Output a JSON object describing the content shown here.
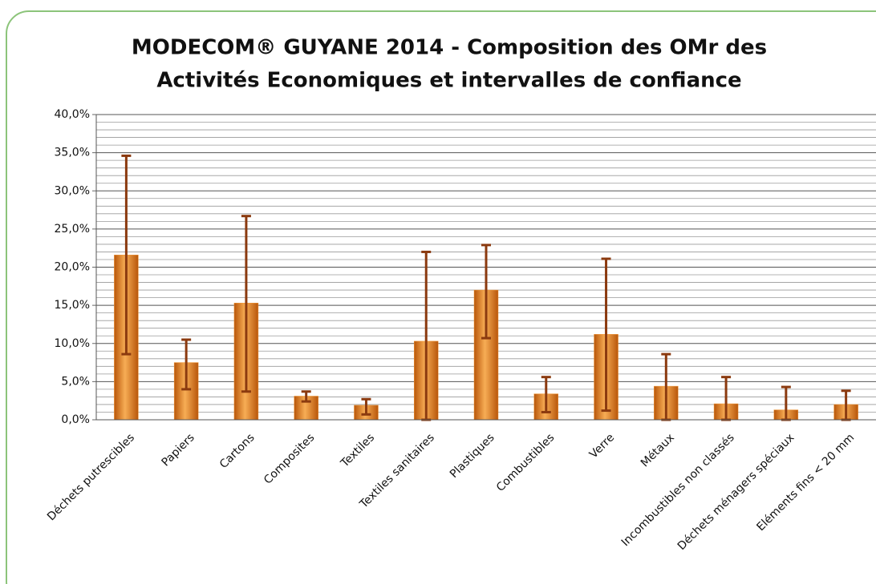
{
  "chart_data": {
    "type": "bar",
    "title": [
      "MODECOM® GUYANE 2014 - Composition des OMr des",
      "Activités Economiques et intervalles de confiance"
    ],
    "categories": [
      "Déchets putrescibles",
      "Papiers",
      "Cartons",
      "Composites",
      "Textiles",
      "Textiles sanitaires",
      "Plastiques",
      "Combustibles",
      "Verre",
      "Métaux",
      "Incombustibles non classés",
      "Déchets ménagers spéciaux",
      "Eléments fins < 20 mm"
    ],
    "values": [
      21.6,
      7.5,
      15.3,
      3.1,
      1.9,
      10.3,
      17.0,
      3.4,
      11.2,
      4.4,
      2.1,
      1.3,
      2.0
    ],
    "lower": [
      8.6,
      4.0,
      3.7,
      2.4,
      0.7,
      0,
      10.7,
      1.0,
      1.2,
      0,
      0,
      0,
      0
    ],
    "upper": [
      34.6,
      10.5,
      26.7,
      3.7,
      2.7,
      22.0,
      22.9,
      5.6,
      21.1,
      8.6,
      5.6,
      4.3,
      3.8
    ],
    "color": "#f29a3a",
    "error_color": "#8b3a0f",
    "ylim": [
      0,
      40
    ],
    "yticks": [
      {
        "value": 0,
        "label": "0,0%"
      },
      {
        "value": 5,
        "label": "5,0%"
      },
      {
        "value": 10,
        "label": "10,0%"
      },
      {
        "value": 15,
        "label": "15,0%"
      },
      {
        "value": 20,
        "label": "20,0%"
      },
      {
        "value": 25,
        "label": "25,0%"
      },
      {
        "value": 30,
        "label": "30,0%"
      },
      {
        "value": 35,
        "label": "35,0%"
      },
      {
        "value": 40,
        "label": "40,0%"
      }
    ],
    "grid": true
  }
}
